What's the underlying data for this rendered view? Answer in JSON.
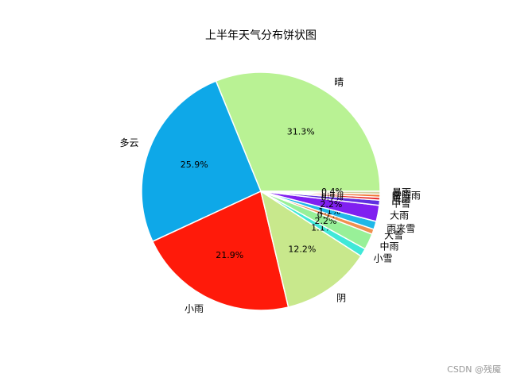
{
  "chart_data": {
    "type": "pie",
    "title": "上半年天气分布饼状图",
    "categories": [
      "晴",
      "多云",
      "小雨",
      "阴",
      "小雪",
      "中雨",
      "大雪",
      "雨夹雪",
      "大雨",
      "中雪",
      "阵雨",
      "雷阵雨",
      "暴雨"
    ],
    "values": [
      31.3,
      25.9,
      21.9,
      12.2,
      1.1,
      2.2,
      0.7,
      1.1,
      2.2,
      0.7,
      0.4,
      0.4,
      0.4
    ],
    "value_labels": [
      "31.3%",
      "25.9%",
      "21.9%",
      "12.2%",
      "1.1%",
      "2.2%",
      "0.7%",
      "1.1%",
      "2.2%",
      "0.7%",
      "0.4%",
      "0.4%",
      "0.4%"
    ],
    "colors": [
      "#b9f294",
      "#0ea8e8",
      "#ff1a0a",
      "#c8e88c",
      "#40e8d8",
      "#98f098",
      "#f09050",
      "#20b8e8",
      "#8020f0",
      "#6030e0",
      "#e83030",
      "#f07030",
      "#d0d0a0"
    ],
    "watermark": "CSDN @残魇"
  }
}
